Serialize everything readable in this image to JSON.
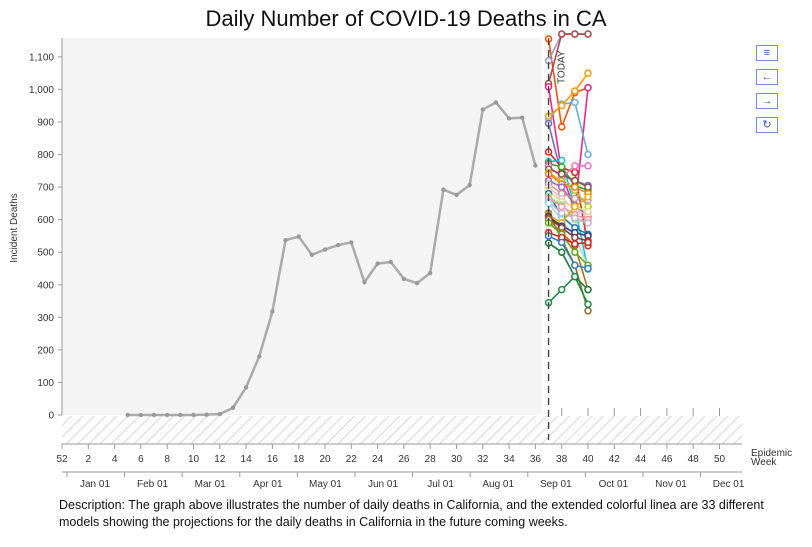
{
  "chart_data": {
    "type": "line",
    "title": "Daily Number of COVID-19 Deaths in CA",
    "ylabel": "Incident Deaths",
    "xlabel": "Epidemic Week",
    "ylim": [
      0,
      1170
    ],
    "yticks": [
      0,
      100,
      200,
      300,
      400,
      500,
      600,
      700,
      800,
      900,
      1000,
      1100
    ],
    "ytick_labels": [
      "0",
      "100",
      "200",
      "300",
      "400",
      "500",
      "600",
      "700",
      "800",
      "900",
      "1,000",
      "1,100"
    ],
    "week_ticks": [
      "52",
      "2",
      "4",
      "6",
      "8",
      "10",
      "12",
      "14",
      "16",
      "18",
      "20",
      "22",
      "24",
      "26",
      "28",
      "30",
      "32",
      "34",
      "36",
      "38",
      "40",
      "42",
      "44",
      "46",
      "48",
      "50"
    ],
    "month_ticks": [
      "Jan 01",
      "Feb 01",
      "Mar 01",
      "Apr 01",
      "May 01",
      "Jun 01",
      "Jul 01",
      "Aug 01",
      "Sep 01",
      "Oct 01",
      "Nov 01",
      "Dec 01"
    ],
    "today_label": "TODAY",
    "today_week": 37,
    "observed": {
      "color": "#aaaaaa",
      "points": [
        [
          5,
          0
        ],
        [
          6,
          0
        ],
        [
          7,
          0
        ],
        [
          8,
          0
        ],
        [
          9,
          0
        ],
        [
          10,
          0
        ],
        [
          11,
          1
        ],
        [
          12,
          3
        ],
        [
          13,
          22
        ],
        [
          14,
          85
        ],
        [
          15,
          180
        ],
        [
          16,
          318
        ],
        [
          17,
          537
        ],
        [
          18,
          548
        ],
        [
          19,
          492
        ],
        [
          20,
          508
        ],
        [
          21,
          522
        ],
        [
          22,
          530
        ],
        [
          23,
          408
        ],
        [
          24,
          465
        ],
        [
          25,
          470
        ],
        [
          26,
          418
        ],
        [
          27,
          405
        ],
        [
          28,
          436
        ],
        [
          29,
          692
        ],
        [
          30,
          676
        ],
        [
          31,
          706
        ],
        [
          32,
          938
        ],
        [
          33,
          960
        ],
        [
          34,
          911
        ],
        [
          35,
          913
        ],
        [
          36,
          766
        ]
      ]
    },
    "forecast_weeks": [
      37,
      38,
      39,
      40
    ],
    "series": [
      {
        "color": "#e6550d",
        "values": [
          1155,
          885,
          990,
          1005
        ]
      },
      {
        "color": "#9e9ac8",
        "values": [
          1088,
          1170,
          1170,
          1170
        ]
      },
      {
        "color": "#ad494a",
        "values": [
          1018,
          1170,
          1170,
          1170
        ]
      },
      {
        "color": "#e7298a",
        "values": [
          1008,
          745,
          625,
          1005
        ]
      },
      {
        "color": "#6baed6",
        "values": [
          910,
          955,
          960,
          800
        ]
      },
      {
        "color": "#ff9900",
        "values": [
          918,
          950,
          995,
          1050
        ]
      },
      {
        "color": "#7570b3",
        "values": [
          895,
          735,
          720,
          705
        ]
      },
      {
        "color": "#d62728",
        "values": [
          808,
          760,
          745,
          520
        ]
      },
      {
        "color": "#17becf",
        "values": [
          778,
          782,
          638,
          448
        ]
      },
      {
        "color": "#2ca02c",
        "values": [
          772,
          762,
          705,
          690
        ]
      },
      {
        "color": "#e377c2",
        "values": [
          765,
          730,
          765,
          765
        ]
      },
      {
        "color": "#8c564b",
        "values": [
          755,
          740,
          720,
          700
        ]
      },
      {
        "color": "#bcbd22",
        "values": [
          745,
          718,
          690,
          640
        ]
      },
      {
        "color": "#ff7f0e",
        "values": [
          740,
          710,
          700,
          680
        ]
      },
      {
        "color": "#9467bd",
        "values": [
          720,
          700,
          645,
          610
        ]
      },
      {
        "color": "#c49c94",
        "values": [
          710,
          680,
          665,
          660
        ]
      },
      {
        "color": "#f7b6d2",
        "values": [
          700,
          665,
          630,
          615
        ]
      },
      {
        "color": "#dbdb8d",
        "values": [
          690,
          655,
          640,
          625
        ]
      },
      {
        "color": "#1f77b4",
        "values": [
          680,
          610,
          575,
          555
        ]
      },
      {
        "color": "#98df8a",
        "values": [
          672,
          645,
          600,
          590
        ]
      },
      {
        "color": "#ff9896",
        "values": [
          665,
          640,
          615,
          600
        ]
      },
      {
        "color": "#c5b0d5",
        "values": [
          655,
          620,
          605,
          590
        ]
      },
      {
        "color": "#9edae5",
        "values": [
          650,
          600,
          545,
          460
        ]
      },
      {
        "color": "#8c6d31",
        "values": [
          620,
          540,
          460,
          320
        ]
      },
      {
        "color": "#e6ab02",
        "values": [
          615,
          590,
          640,
          670
        ]
      },
      {
        "color": "#393b79",
        "values": [
          610,
          580,
          560,
          550
        ]
      },
      {
        "color": "#843c39",
        "values": [
          605,
          575,
          545,
          535
        ]
      },
      {
        "color": "#a6761d",
        "values": [
          600,
          560,
          520,
          385
        ]
      },
      {
        "color": "#66a61e",
        "values": [
          590,
          555,
          500,
          460
        ]
      },
      {
        "color": "#e41a1c",
        "values": [
          560,
          545,
          525,
          530
        ]
      },
      {
        "color": "#377eb8",
        "values": [
          550,
          530,
          460,
          450
        ]
      },
      {
        "color": "#1b7837",
        "values": [
          528,
          500,
          425,
          385
        ]
      },
      {
        "color": "#238b45",
        "values": [
          345,
          385,
          425,
          340
        ]
      }
    ]
  },
  "toolbar": {
    "menu_icon": "≡",
    "back_icon": "←",
    "forward_icon": "→",
    "reset_icon": "↻"
  },
  "description": "Description: The graph above illustrates the number of daily deaths in California, and the extended colorful linea are 33 different models showing the projections for the daily deaths  in California in the future coming weeks."
}
